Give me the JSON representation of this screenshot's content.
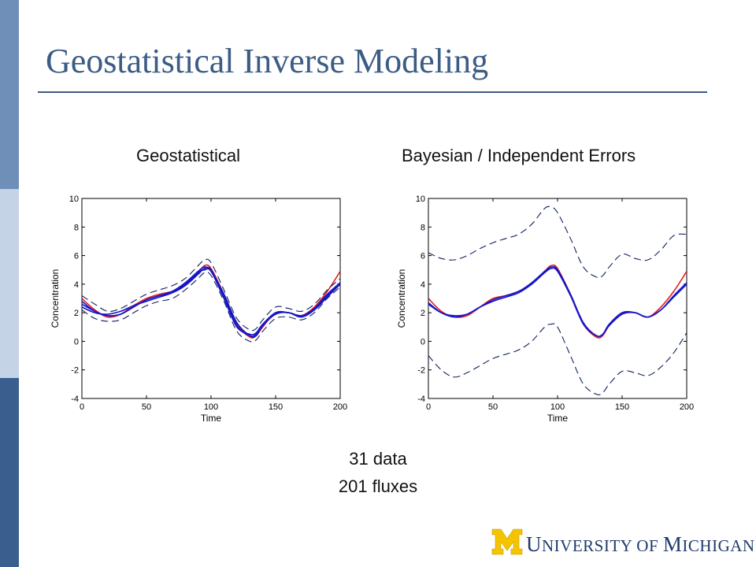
{
  "slide": {
    "title": "Geostatistical Inverse Modeling",
    "captions": [
      "31 data",
      "201 fluxes"
    ],
    "logo": {
      "parts": [
        {
          "big": "U",
          "small": "NIVERSITY OF "
        },
        {
          "big": "M",
          "small": "ICHIGAN"
        }
      ],
      "colors": {
        "maize": "#f5c400",
        "blue": "#1f3a6b"
      }
    }
  },
  "colors": {
    "sidebar_top": "#6f8fb8",
    "sidebar_mid": "#c4d3e6",
    "sidebar_bottom": "#3a5f8e",
    "title": "#3b5c85",
    "series_red": "#e41a1c",
    "series_blue": "#1515c8",
    "series_navy": "#102060"
  },
  "chart_data": [
    {
      "type": "line",
      "title": "Geostatistical",
      "xlabel": "Time",
      "ylabel": "Concentration",
      "xlim": [
        0,
        200
      ],
      "ylim": [
        -4,
        10
      ],
      "xticks": [
        0,
        50,
        100,
        150,
        200
      ],
      "yticks": [
        -4,
        -2,
        0,
        2,
        4,
        6,
        8,
        10
      ],
      "grid": false,
      "x": [
        0,
        10,
        20,
        30,
        40,
        50,
        60,
        70,
        80,
        90,
        95,
        100,
        110,
        120,
        130,
        135,
        140,
        150,
        160,
        170,
        180,
        190,
        200
      ],
      "series": [
        {
          "style": "solid",
          "color": "#e41a1c",
          "values": [
            3.0,
            2.2,
            1.7,
            1.9,
            2.5,
            3.0,
            3.3,
            3.5,
            4.0,
            4.8,
            5.3,
            5.1,
            3.3,
            1.2,
            0.3,
            0.4,
            1.0,
            2.0,
            2.0,
            1.8,
            2.4,
            3.5,
            4.9
          ]
        },
        {
          "style": "solid",
          "color": "#1515c8",
          "values": [
            2.8,
            2.1,
            1.8,
            1.9,
            2.4,
            2.9,
            3.2,
            3.4,
            3.9,
            4.7,
            5.1,
            5.0,
            3.2,
            1.1,
            0.4,
            0.5,
            1.1,
            2.0,
            2.0,
            1.8,
            2.3,
            3.3,
            4.1
          ]
        },
        {
          "style": "solid",
          "color": "#1515c8",
          "values": [
            2.4,
            2.0,
            1.9,
            2.1,
            2.5,
            2.8,
            3.1,
            3.4,
            4.0,
            4.8,
            5.0,
            4.9,
            3.0,
            1.0,
            0.5,
            0.6,
            1.2,
            2.0,
            2.0,
            1.8,
            2.2,
            3.1,
            4.0
          ]
        },
        {
          "style": "solid",
          "color": "#1515c8",
          "values": [
            2.6,
            2.1,
            1.8,
            1.9,
            2.4,
            2.9,
            3.2,
            3.5,
            4.1,
            4.9,
            5.2,
            4.9,
            3.3,
            1.3,
            0.4,
            0.4,
            1.1,
            1.9,
            2.0,
            1.7,
            2.2,
            3.2,
            4.0
          ]
        },
        {
          "style": "dashed",
          "color": "#102060",
          "values": [
            3.2,
            2.6,
            2.1,
            2.3,
            2.8,
            3.3,
            3.6,
            3.9,
            4.4,
            5.3,
            5.7,
            5.5,
            3.6,
            1.6,
            0.8,
            0.9,
            1.5,
            2.4,
            2.3,
            2.1,
            2.6,
            3.6,
            4.4
          ]
        },
        {
          "style": "dashed",
          "color": "#102060",
          "values": [
            2.2,
            1.6,
            1.4,
            1.5,
            2.0,
            2.5,
            2.8,
            3.0,
            3.6,
            4.4,
            4.8,
            4.6,
            2.8,
            0.7,
            0.0,
            0.1,
            0.7,
            1.6,
            1.7,
            1.5,
            2.0,
            3.0,
            3.8
          ]
        }
      ]
    },
    {
      "type": "line",
      "title": "Bayesian / Independent Errors",
      "xlabel": "Time",
      "ylabel": "Concentration",
      "xlim": [
        0,
        200
      ],
      "ylim": [
        -4,
        10
      ],
      "xticks": [
        0,
        50,
        100,
        150,
        200
      ],
      "yticks": [
        -4,
        -2,
        0,
        2,
        4,
        6,
        8,
        10
      ],
      "grid": false,
      "x": [
        0,
        10,
        20,
        30,
        40,
        50,
        60,
        70,
        80,
        90,
        95,
        100,
        110,
        120,
        130,
        135,
        140,
        150,
        160,
        170,
        180,
        190,
        200
      ],
      "series": [
        {
          "style": "solid",
          "color": "#e41a1c",
          "values": [
            3.0,
            2.1,
            1.7,
            1.8,
            2.4,
            3.0,
            3.2,
            3.5,
            4.0,
            4.9,
            5.3,
            5.1,
            3.3,
            1.2,
            0.3,
            0.4,
            1.1,
            2.0,
            2.0,
            1.7,
            2.4,
            3.5,
            4.9
          ]
        },
        {
          "style": "solid",
          "color": "#1515c8",
          "values": [
            2.7,
            2.0,
            1.7,
            1.9,
            2.4,
            2.9,
            3.2,
            3.5,
            4.1,
            4.9,
            5.2,
            5.0,
            3.3,
            1.3,
            0.4,
            0.5,
            1.2,
            2.0,
            2.0,
            1.7,
            2.2,
            3.2,
            4.1
          ]
        },
        {
          "style": "solid",
          "color": "#1515c8",
          "values": [
            2.6,
            2.0,
            1.8,
            1.9,
            2.4,
            2.8,
            3.1,
            3.4,
            4.0,
            4.8,
            5.1,
            4.9,
            3.2,
            1.2,
            0.4,
            0.5,
            1.1,
            1.9,
            2.0,
            1.7,
            2.2,
            3.1,
            4.0
          ]
        },
        {
          "style": "dashed",
          "color": "#102060",
          "values": [
            6.2,
            5.8,
            5.7,
            6.0,
            6.5,
            6.9,
            7.2,
            7.5,
            8.2,
            9.3,
            9.4,
            9.0,
            7.2,
            5.2,
            4.5,
            4.6,
            5.2,
            6.1,
            5.8,
            5.7,
            6.4,
            7.4,
            7.5
          ]
        },
        {
          "style": "dashed",
          "color": "#102060",
          "values": [
            -1.0,
            -2.0,
            -2.5,
            -2.2,
            -1.7,
            -1.2,
            -0.9,
            -0.6,
            0.0,
            1.0,
            1.2,
            1.0,
            -1.0,
            -3.0,
            -3.7,
            -3.6,
            -3.0,
            -2.1,
            -2.2,
            -2.4,
            -1.8,
            -0.8,
            0.6
          ]
        }
      ]
    }
  ]
}
